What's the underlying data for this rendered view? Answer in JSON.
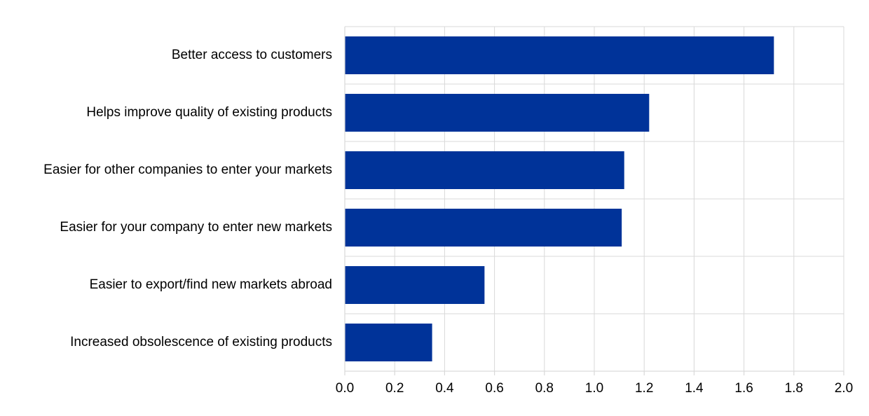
{
  "colors": {
    "bar": "#003399",
    "grid": "#d9d9d9",
    "text": "#000000"
  },
  "chart_data": {
    "type": "bar",
    "orientation": "horizontal",
    "title": "",
    "xlabel": "",
    "ylabel": "",
    "categories": [
      "Better access to customers",
      "Helps improve quality of existing products",
      "Easier for other companies to enter your markets",
      "Easier for your company to enter new markets",
      "Easier to export/find new markets abroad",
      "Increased obsolescence of existing products"
    ],
    "values": [
      1.72,
      1.22,
      1.12,
      1.11,
      0.56,
      0.35
    ],
    "xlim": [
      0,
      2.0
    ],
    "xticks": [
      "0.0",
      "0.2",
      "0.4",
      "0.6",
      "0.8",
      "1.0",
      "1.2",
      "1.4",
      "1.6",
      "1.8",
      "2.0"
    ],
    "grid": true,
    "legend": "none"
  }
}
